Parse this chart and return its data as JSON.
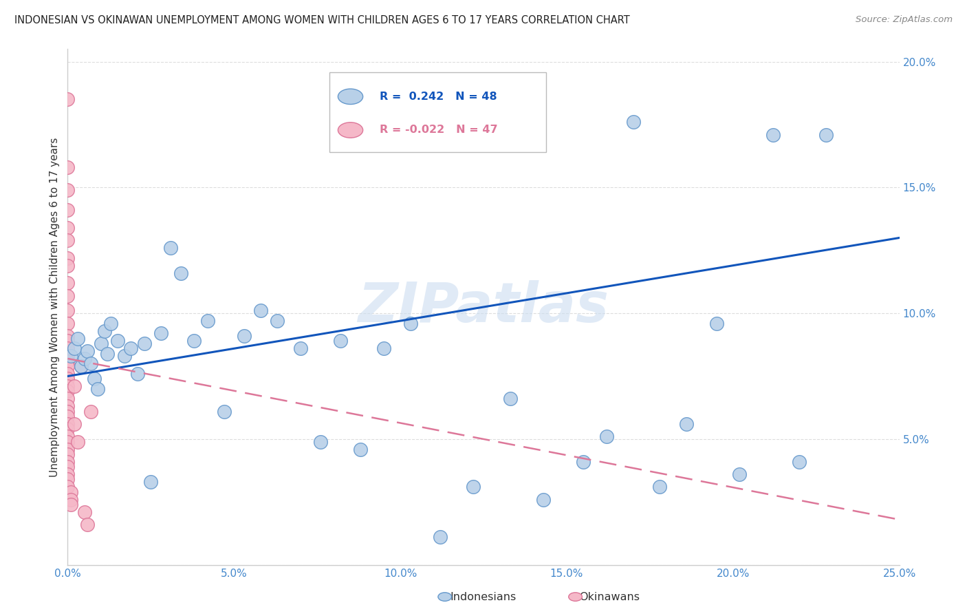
{
  "title": "INDONESIAN VS OKINAWAN UNEMPLOYMENT AMONG WOMEN WITH CHILDREN AGES 6 TO 17 YEARS CORRELATION CHART",
  "source": "Source: ZipAtlas.com",
  "ylabel": "Unemployment Among Women with Children Ages 6 to 17 years",
  "xlim": [
    0.0,
    0.25
  ],
  "ylim": [
    0.0,
    0.205
  ],
  "xticks": [
    0.0,
    0.05,
    0.1,
    0.15,
    0.2,
    0.25
  ],
  "yticks": [
    0.0,
    0.05,
    0.1,
    0.15,
    0.2
  ],
  "xticklabels": [
    "0.0%",
    "5.0%",
    "10.0%",
    "15.0%",
    "20.0%",
    "25.0%"
  ],
  "yticklabels": [
    "",
    "5.0%",
    "10.0%",
    "15.0%",
    "20.0%"
  ],
  "indonesian_R": 0.242,
  "indonesian_N": 48,
  "okinawan_R": -0.022,
  "okinawan_N": 47,
  "indonesian_color": "#b8d0e8",
  "indonesian_edge_color": "#6699cc",
  "okinawan_color": "#f5b8c8",
  "okinawan_edge_color": "#dd7799",
  "indonesian_line_color": "#1155bb",
  "okinawan_line_color": "#dd7799",
  "watermark": "ZIPatlas",
  "background_color": "#ffffff",
  "grid_color": "#dddddd",
  "indonesian_x": [
    0.001,
    0.002,
    0.003,
    0.004,
    0.005,
    0.006,
    0.007,
    0.008,
    0.009,
    0.01,
    0.011,
    0.012,
    0.013,
    0.015,
    0.017,
    0.019,
    0.021,
    0.023,
    0.025,
    0.028,
    0.031,
    0.034,
    0.038,
    0.042,
    0.047,
    0.053,
    0.058,
    0.063,
    0.07,
    0.076,
    0.082,
    0.088,
    0.095,
    0.103,
    0.112,
    0.122,
    0.133,
    0.143,
    0.155,
    0.162,
    0.17,
    0.178,
    0.186,
    0.195,
    0.202,
    0.212,
    0.22,
    0.228
  ],
  "indonesian_y": [
    0.083,
    0.086,
    0.09,
    0.079,
    0.082,
    0.085,
    0.08,
    0.074,
    0.07,
    0.088,
    0.093,
    0.084,
    0.096,
    0.089,
    0.083,
    0.086,
    0.076,
    0.088,
    0.033,
    0.092,
    0.126,
    0.116,
    0.089,
    0.097,
    0.061,
    0.091,
    0.101,
    0.097,
    0.086,
    0.049,
    0.089,
    0.046,
    0.086,
    0.096,
    0.011,
    0.031,
    0.066,
    0.026,
    0.041,
    0.051,
    0.176,
    0.031,
    0.056,
    0.096,
    0.036,
    0.171,
    0.041,
    0.171
  ],
  "okinawan_x": [
    0.0,
    0.0,
    0.0,
    0.0,
    0.0,
    0.0,
    0.0,
    0.0,
    0.0,
    0.0,
    0.0,
    0.0,
    0.0,
    0.0,
    0.0,
    0.0,
    0.0,
    0.0,
    0.0,
    0.0,
    0.0,
    0.0,
    0.0,
    0.0,
    0.0,
    0.0,
    0.0,
    0.0,
    0.0,
    0.0,
    0.0,
    0.0,
    0.0,
    0.0,
    0.0,
    0.0,
    0.0,
    0.001,
    0.001,
    0.001,
    0.002,
    0.002,
    0.003,
    0.004,
    0.005,
    0.006,
    0.007
  ],
  "okinawan_y": [
    0.185,
    0.158,
    0.149,
    0.141,
    0.134,
    0.129,
    0.122,
    0.119,
    0.112,
    0.107,
    0.101,
    0.096,
    0.091,
    0.089,
    0.086,
    0.083,
    0.081,
    0.079,
    0.076,
    0.074,
    0.071,
    0.069,
    0.066,
    0.063,
    0.061,
    0.059,
    0.056,
    0.054,
    0.051,
    0.049,
    0.046,
    0.044,
    0.041,
    0.039,
    0.036,
    0.034,
    0.031,
    0.029,
    0.026,
    0.024,
    0.056,
    0.071,
    0.049,
    0.079,
    0.021,
    0.016,
    0.061
  ]
}
